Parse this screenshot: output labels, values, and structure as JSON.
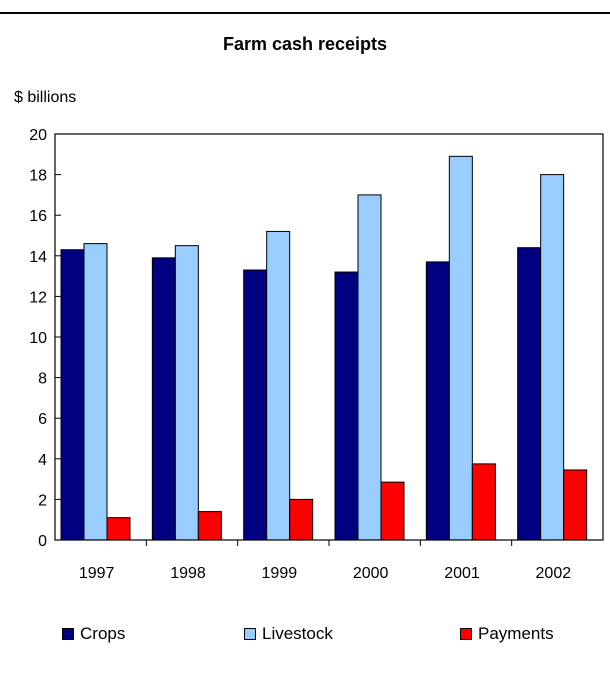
{
  "chart_data": {
    "type": "bar",
    "title": "Farm cash receipts",
    "ylabel": "$ billions",
    "xlabel": "",
    "categories": [
      "1997",
      "1998",
      "1999",
      "2000",
      "2001",
      "2002"
    ],
    "series": [
      {
        "name": "Crops",
        "color": "#000080",
        "values": [
          14.3,
          13.9,
          13.3,
          13.2,
          13.7,
          14.4
        ]
      },
      {
        "name": "Livestock",
        "color": "#99ccff",
        "values": [
          14.6,
          14.5,
          15.2,
          17.0,
          18.9,
          18.0
        ]
      },
      {
        "name": "Payments",
        "color": "#ff0000",
        "values": [
          1.1,
          1.4,
          2.0,
          2.85,
          3.75,
          3.45
        ]
      }
    ],
    "ylim": [
      0,
      20
    ],
    "yticks": [
      "0",
      "2",
      "4",
      "6",
      "8",
      "10",
      "12",
      "14",
      "16",
      "18",
      "20"
    ],
    "grid": false,
    "legend_position": "bottom"
  }
}
